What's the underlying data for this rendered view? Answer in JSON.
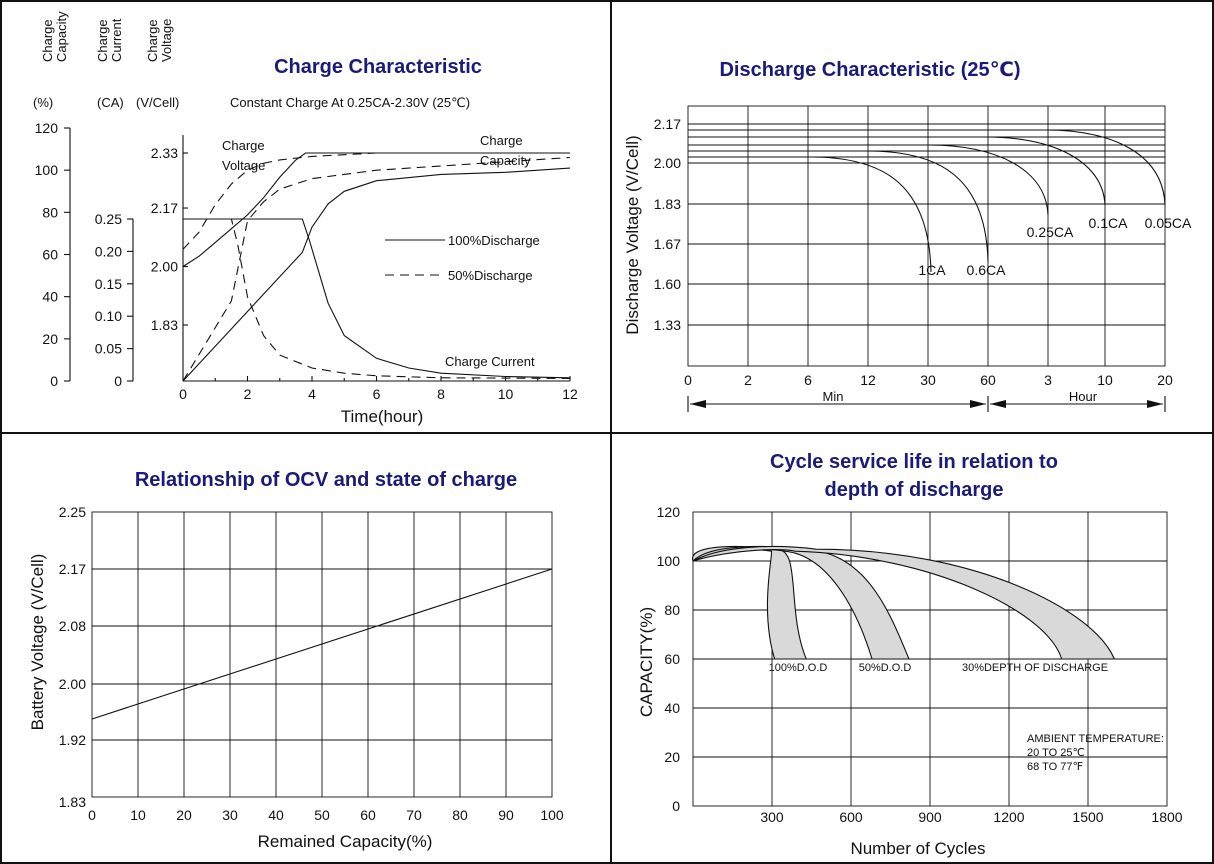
{
  "chart_data": [
    {
      "type": "line",
      "title": "Charge Characteristic",
      "subtitle": "Constant Charge At 0.25CA-2.30V  (25℃)",
      "xlabel": "Time(hour)",
      "xlim": [
        0,
        12
      ],
      "x_ticks": [
        "0",
        "2",
        "4",
        "6",
        "8",
        "10",
        "12"
      ],
      "axes": [
        {
          "name": "Charge Capacity",
          "unit": "(%)",
          "ticks": [
            "0",
            "20",
            "40",
            "60",
            "80",
            "100",
            "120"
          ]
        },
        {
          "name": "Charge Current",
          "unit": "(CA)",
          "ticks": [
            "0",
            "0.05",
            "0.10",
            "0.15",
            "0.20",
            "0.25"
          ]
        },
        {
          "name": "Charge Voltage",
          "unit": "(V/Cell)",
          "ticks": [
            "1.83",
            "2.00",
            "2.17",
            "2.33"
          ]
        }
      ],
      "curve_labels": [
        "Charge Voltage",
        "Charge Capacity",
        "Charge Current"
      ],
      "legend": [
        {
          "label": "100%Discharge",
          "style": "solid"
        },
        {
          "label": "50%Discharge",
          "style": "dashed"
        }
      ],
      "series": [
        {
          "name": "100%Discharge",
          "axis": "Charge Voltage",
          "x": [
            0,
            0.5,
            1,
            1.5,
            2,
            2.5,
            3,
            3.5,
            3.8,
            5,
            8,
            12
          ],
          "y": [
            2.0,
            2.03,
            2.07,
            2.11,
            2.15,
            2.2,
            2.26,
            2.31,
            2.33,
            2.33,
            2.33,
            2.33
          ]
        },
        {
          "name": "100%Discharge",
          "axis": "Charge Current",
          "x": [
            0,
            3.7,
            3.9,
            4.5,
            5,
            6,
            7,
            8,
            10,
            12
          ],
          "y": [
            0.25,
            0.25,
            0.22,
            0.12,
            0.07,
            0.035,
            0.02,
            0.012,
            0.007,
            0.005
          ]
        },
        {
          "name": "100%Discharge",
          "axis": "Charge Capacity",
          "x": [
            0,
            3.7,
            4,
            4.5,
            5,
            6,
            8,
            10,
            12
          ],
          "y": [
            0,
            61,
            73,
            84,
            90,
            95,
            98,
            99,
            101
          ]
        },
        {
          "name": "50%Discharge",
          "axis": "Charge Voltage",
          "x": [
            0,
            0.5,
            1,
            1.5,
            2,
            2.5,
            3,
            4,
            6,
            8,
            12
          ],
          "y": [
            2.05,
            2.1,
            2.18,
            2.24,
            2.28,
            2.3,
            2.31,
            2.32,
            2.33,
            2.33,
            2.33
          ]
        },
        {
          "name": "50%Discharge",
          "axis": "Charge Current",
          "x": [
            0,
            1.5,
            1.7,
            2,
            2.5,
            3,
            4,
            5,
            6,
            8,
            12
          ],
          "y": [
            0.25,
            0.25,
            0.21,
            0.13,
            0.07,
            0.04,
            0.02,
            0.012,
            0.008,
            0.005,
            0.004
          ]
        },
        {
          "name": "50%Discharge",
          "axis": "Charge Capacity",
          "x": [
            0,
            1.5,
            2,
            2.5,
            3,
            4,
            6,
            8,
            10,
            12
          ],
          "y": [
            0,
            38,
            76,
            85,
            91,
            96,
            100,
            102,
            104,
            106
          ]
        }
      ]
    },
    {
      "type": "line",
      "title": "Discharge Characteristic  (25℃)",
      "ylabel": "Discharge Voltage (V/Cell)",
      "y_ticks": [
        "1.33",
        "1.60",
        "1.67",
        "1.83",
        "2.00",
        "2.17"
      ],
      "x_ticks": [
        "0",
        "2",
        "6",
        "12",
        "30",
        "60",
        "3",
        "10",
        "20"
      ],
      "x_units": [
        "Min",
        "Hour"
      ],
      "series": [
        {
          "name": "1CA",
          "end": "30 Min"
        },
        {
          "name": "0.6CA",
          "end": "60 Min"
        },
        {
          "name": "0.25CA",
          "end": "3 Hour"
        },
        {
          "name": "0.1CA",
          "end": "10 Hour"
        },
        {
          "name": "0.05CA",
          "end": "20 Hour"
        }
      ]
    },
    {
      "type": "line",
      "title": "Relationship of OCV and state of charge",
      "xlabel": "Remained Capacity(%)",
      "ylabel": "Battery Voltage (V/Cell)",
      "x_ticks": [
        "0",
        "10",
        "20",
        "30",
        "40",
        "50",
        "60",
        "70",
        "80",
        "90",
        "100"
      ],
      "y_ticks": [
        "1.83",
        "1.92",
        "2.00",
        "2.08",
        "2.17",
        "2.25"
      ],
      "xlim": [
        0,
        100
      ],
      "series": [
        {
          "x": [
            0,
            100
          ],
          "y": [
            1.95,
            2.17
          ]
        }
      ]
    },
    {
      "type": "area",
      "title": "Cycle service life in relation to\ndepth of discharge",
      "xlabel": "Number of Cycles",
      "ylabel": "CAPACITY(%)",
      "x_ticks": [
        "0",
        "300",
        "600",
        "900",
        "1200",
        "1500",
        "1800"
      ],
      "y_ticks": [
        "0",
        "20",
        "40",
        "60",
        "80",
        "100",
        "120"
      ],
      "xlim": [
        0,
        1800
      ],
      "ylim": [
        0,
        120
      ],
      "series": [
        {
          "name": "100%D.O.D",
          "end_range": [
            310,
            430
          ]
        },
        {
          "name": "50%D.O.D",
          "end_range": [
            680,
            820
          ]
        },
        {
          "name": "30%DEPTH OF DISCHARGE",
          "end_range": [
            1400,
            1600
          ]
        }
      ],
      "annotation": [
        "AMBIENT TEMPERATURE:",
        "20 TO 25℃",
        "68 TO 77℉"
      ]
    }
  ]
}
